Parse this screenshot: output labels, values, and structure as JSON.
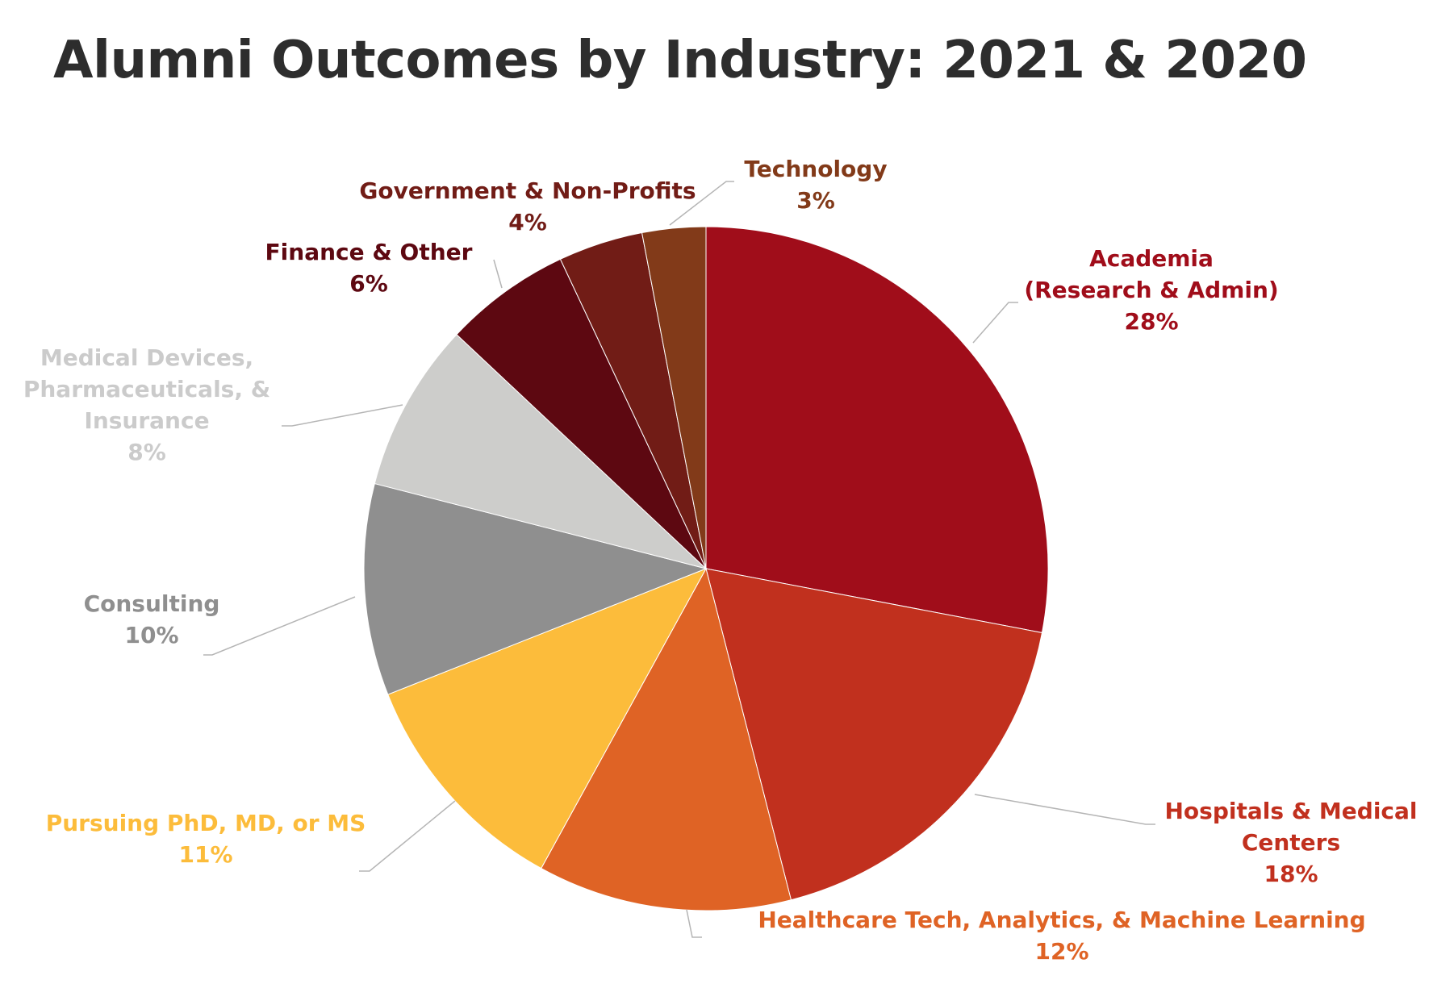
{
  "chart_data": {
    "type": "pie",
    "title": "Alumni Outcomes by Industry: 2021 & 2020",
    "slices": [
      {
        "label_lines": [
          "Academia",
          "(Research & Admin)"
        ],
        "percent_label": "28%",
        "value": 28,
        "color": "#a00d1a",
        "label_color": "#a00d1a"
      },
      {
        "label_lines": [
          "Hospitals & Medical",
          "Centers"
        ],
        "percent_label": "18%",
        "value": 18,
        "color": "#c1301e",
        "label_color": "#c1301e"
      },
      {
        "label_lines": [
          "Healthcare Tech, Analytics, & Machine Learning"
        ],
        "percent_label": "12%",
        "value": 12,
        "color": "#df6325",
        "label_color": "#df6325"
      },
      {
        "label_lines": [
          "Pursuing PhD, MD, or MS"
        ],
        "percent_label": "11%",
        "value": 11,
        "color": "#fcbc3b",
        "label_color": "#fcbc3b"
      },
      {
        "label_lines": [
          "Consulting"
        ],
        "percent_label": "10%",
        "value": 10,
        "color": "#8f8f8f",
        "label_color": "#8f8f8f"
      },
      {
        "label_lines": [
          "Medical Devices,",
          "Pharmaceuticals, &",
          "Insurance"
        ],
        "percent_label": "8%",
        "value": 8,
        "color": "#cdcdcb",
        "label_color": "#cbcbcb"
      },
      {
        "label_lines": [
          "Finance & Other"
        ],
        "percent_label": "6%",
        "value": 6,
        "color": "#5d0811",
        "label_color": "#5d0811"
      },
      {
        "label_lines": [
          "Government & Non-Profits"
        ],
        "percent_label": "4%",
        "value": 4,
        "color": "#711c16",
        "label_color": "#711c16"
      },
      {
        "label_lines": [
          "Technology"
        ],
        "percent_label": "3%",
        "value": 3,
        "color": "#823a19",
        "label_color": "#823a19"
      }
    ]
  }
}
